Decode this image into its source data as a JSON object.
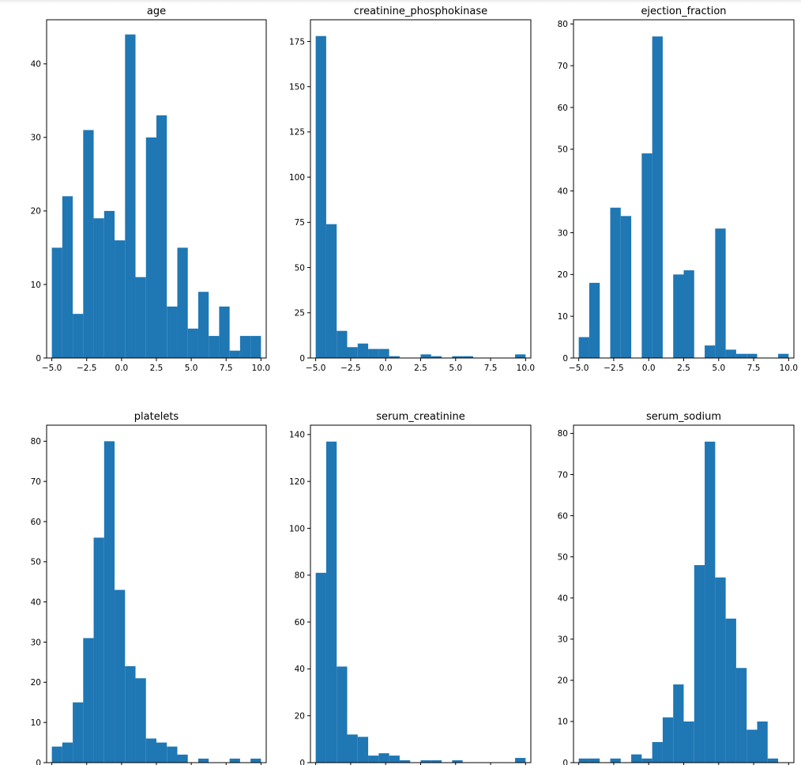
{
  "chart_data": [
    {
      "type": "bar",
      "title": "age",
      "bin_edges": [
        -5.0,
        -4.25,
        -3.5,
        -2.75,
        -2.0,
        -1.25,
        -0.5,
        0.25,
        1.0,
        1.75,
        2.5,
        3.25,
        4.0,
        4.75,
        5.5,
        6.25,
        7.0,
        7.75,
        8.5,
        9.25,
        10.0
      ],
      "values": [
        15,
        22,
        6,
        31,
        19,
        20,
        16,
        44,
        11,
        30,
        33,
        7,
        15,
        4,
        9,
        3,
        7,
        1,
        3,
        3
      ],
      "ylim": [
        0,
        46
      ],
      "xlim": [
        -5.375,
        10.375
      ],
      "yticks": [
        0,
        10,
        20,
        30,
        40
      ],
      "xticks": [
        -5.0,
        -2.5,
        0.0,
        2.5,
        5.0,
        7.5,
        10.0
      ],
      "xtick_labels": [
        "−5.0",
        "−2.5",
        "0.0",
        "2.5",
        "5.0",
        "7.5",
        "10.0"
      ]
    },
    {
      "type": "bar",
      "title": "creatinine_phosphokinase",
      "bin_edges": [
        -5.0,
        -4.25,
        -3.5,
        -2.75,
        -2.0,
        -1.25,
        -0.5,
        0.25,
        1.0,
        1.75,
        2.5,
        3.25,
        4.0,
        4.75,
        5.5,
        6.25,
        7.0,
        7.75,
        8.5,
        9.25,
        10.0
      ],
      "values": [
        178,
        74,
        15,
        6,
        8,
        5,
        5,
        1,
        0,
        0,
        2,
        1,
        0,
        1,
        1,
        0,
        0,
        0,
        0,
        2
      ],
      "ylim": [
        0,
        187
      ],
      "xlim": [
        -5.375,
        10.375
      ],
      "yticks": [
        0,
        25,
        50,
        75,
        100,
        125,
        150,
        175
      ],
      "xticks": [
        -5.0,
        -2.5,
        0.0,
        2.5,
        5.0,
        7.5,
        10.0
      ],
      "xtick_labels": [
        "−5.0",
        "−2.5",
        "0.0",
        "2.5",
        "5.0",
        "7.5",
        "10.0"
      ]
    },
    {
      "type": "bar",
      "title": "ejection_fraction",
      "bin_edges": [
        -5.0,
        -4.25,
        -3.5,
        -2.75,
        -2.0,
        -1.25,
        -0.5,
        0.25,
        1.0,
        1.75,
        2.5,
        3.25,
        4.0,
        4.75,
        5.5,
        6.25,
        7.0,
        7.75,
        8.5,
        9.25,
        10.0
      ],
      "values": [
        5,
        18,
        0,
        36,
        34,
        0,
        49,
        77,
        0,
        20,
        21,
        0,
        3,
        31,
        2,
        1,
        1,
        0,
        0,
        1
      ],
      "ylim": [
        0,
        81
      ],
      "xlim": [
        -5.375,
        10.375
      ],
      "yticks": [
        0,
        10,
        20,
        30,
        40,
        50,
        60,
        70,
        80
      ],
      "xticks": [
        -5.0,
        -2.5,
        0.0,
        2.5,
        5.0,
        7.5,
        10.0
      ],
      "xtick_labels": [
        "−5.0",
        "−2.5",
        "0.0",
        "2.5",
        "5.0",
        "7.5",
        "10.0"
      ]
    },
    {
      "type": "bar",
      "title": "platelets",
      "bin_edges": [
        -5.0,
        -4.25,
        -3.5,
        -2.75,
        -2.0,
        -1.25,
        -0.5,
        0.25,
        1.0,
        1.75,
        2.5,
        3.25,
        4.0,
        4.75,
        5.5,
        6.25,
        7.0,
        7.75,
        8.5,
        9.25,
        10.0
      ],
      "values": [
        4,
        5,
        15,
        31,
        56,
        80,
        43,
        24,
        21,
        6,
        5,
        4,
        2,
        0,
        1,
        0,
        0,
        1,
        0,
        1
      ],
      "ylim": [
        0,
        84
      ],
      "xlim": [
        -5.375,
        10.375
      ],
      "yticks": [
        0,
        10,
        20,
        30,
        40,
        50,
        60,
        70,
        80
      ],
      "xticks": [
        -5.0,
        -2.5,
        0.0,
        2.5,
        5.0,
        7.5,
        10.0
      ],
      "xtick_labels": []
    },
    {
      "type": "bar",
      "title": "serum_creatinine",
      "bin_edges": [
        -5.0,
        -4.25,
        -3.5,
        -2.75,
        -2.0,
        -1.25,
        -0.5,
        0.25,
        1.0,
        1.75,
        2.5,
        3.25,
        4.0,
        4.75,
        5.5,
        6.25,
        7.0,
        7.75,
        8.5,
        9.25,
        10.0
      ],
      "values": [
        81,
        137,
        41,
        12,
        11,
        3,
        4,
        3,
        1,
        0,
        1,
        1,
        0,
        1,
        0,
        0,
        0,
        0,
        0,
        2
      ],
      "ylim": [
        0,
        144
      ],
      "xlim": [
        -5.375,
        10.375
      ],
      "yticks": [
        0,
        20,
        40,
        60,
        80,
        100,
        120,
        140
      ],
      "xticks": [
        -5.0,
        -2.5,
        0.0,
        2.5,
        5.0,
        7.5,
        10.0
      ],
      "xtick_labels": []
    },
    {
      "type": "bar",
      "title": "serum_sodium",
      "bin_edges": [
        -5.0,
        -4.25,
        -3.5,
        -2.75,
        -2.0,
        -1.25,
        -0.5,
        0.25,
        1.0,
        1.75,
        2.5,
        3.25,
        4.0,
        4.75,
        5.5,
        6.25,
        7.0,
        7.75,
        8.5,
        9.25,
        10.0
      ],
      "values": [
        1,
        1,
        0,
        1,
        0,
        2,
        1,
        5,
        11,
        19,
        10,
        48,
        78,
        45,
        35,
        23,
        8,
        10,
        1,
        0
      ],
      "ylim": [
        0,
        82
      ],
      "xlim": [
        -5.375,
        10.375
      ],
      "yticks": [
        0,
        10,
        20,
        30,
        40,
        50,
        60,
        70,
        80
      ],
      "xticks": [
        -5.0,
        -2.5,
        0.0,
        2.5,
        5.0,
        7.5,
        10.0
      ],
      "xtick_labels": []
    }
  ],
  "colors": {
    "bar": "#1f77b4",
    "axes": "#000000",
    "background": "#ffffff"
  }
}
